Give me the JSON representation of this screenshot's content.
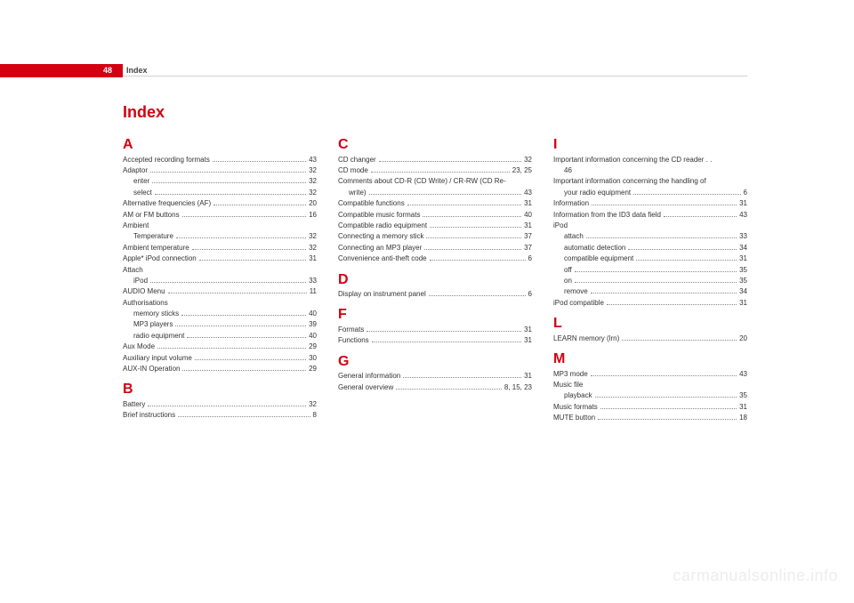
{
  "page_number": "48",
  "header_label": "Index",
  "title": "Index",
  "watermark": "carmanualsonline.info",
  "colors": {
    "accent": "#d30012",
    "text": "#333333",
    "rule": "#d0d0d0",
    "watermark": "#eceded",
    "background": "#ffffff",
    "page_num_text": "#ffffff"
  },
  "typography": {
    "title_fontsize": 18,
    "letter_fontsize": 16,
    "entry_fontsize": 8,
    "header_fontsize": 9
  },
  "columns": [
    {
      "items": [
        {
          "type": "letter",
          "value": "A"
        },
        {
          "type": "entry",
          "label": "Accepted recording formats",
          "page": "43"
        },
        {
          "type": "entry",
          "label": "Adaptor",
          "page": "32"
        },
        {
          "type": "entry",
          "label": "enter",
          "page": "32",
          "sub": true
        },
        {
          "type": "entry",
          "label": "select",
          "page": "32",
          "sub": true
        },
        {
          "type": "entry",
          "label": "Alternative frequencies (AF)",
          "page": "20"
        },
        {
          "type": "entry",
          "label": "AM or FM buttons",
          "page": "16"
        },
        {
          "type": "entry",
          "label": "Ambient",
          "page": "",
          "nolead": true
        },
        {
          "type": "entry",
          "label": "Temperature",
          "page": "32",
          "sub": true
        },
        {
          "type": "entry",
          "label": "Ambient temperature",
          "page": "32"
        },
        {
          "type": "entry",
          "label": "Apple* iPod connection",
          "page": "31"
        },
        {
          "type": "entry",
          "label": "Attach",
          "page": "",
          "nolead": true
        },
        {
          "type": "entry",
          "label": "iPod",
          "page": "33",
          "sub": true
        },
        {
          "type": "entry",
          "label": "AUDIO Menu",
          "page": "11"
        },
        {
          "type": "entry",
          "label": "Authorisations",
          "page": "",
          "nolead": true
        },
        {
          "type": "entry",
          "label": "memory sticks",
          "page": "40",
          "sub": true
        },
        {
          "type": "entry",
          "label": "MP3 players",
          "page": "39",
          "sub": true
        },
        {
          "type": "entry",
          "label": "radio equipment",
          "page": "40",
          "sub": true
        },
        {
          "type": "entry",
          "label": "Aux Mode",
          "page": "29"
        },
        {
          "type": "entry",
          "label": "Auxiliary input volume",
          "page": "30"
        },
        {
          "type": "entry",
          "label": "AUX-IN Operation",
          "page": "29"
        },
        {
          "type": "letter",
          "value": "B"
        },
        {
          "type": "entry",
          "label": "Battery",
          "page": "32"
        },
        {
          "type": "entry",
          "label": "Brief instructions",
          "page": "8"
        }
      ]
    },
    {
      "items": [
        {
          "type": "letter",
          "value": "C"
        },
        {
          "type": "entry",
          "label": "CD changer",
          "page": "32"
        },
        {
          "type": "entry",
          "label": "CD mode",
          "page": "23, 25"
        },
        {
          "type": "entry",
          "label": "Comments about CD-R (CD Write) / CR-RW (CD Re-",
          "page": "",
          "nolead": true
        },
        {
          "type": "entry",
          "label": "write)",
          "page": "43",
          "sub": true
        },
        {
          "type": "entry",
          "label": "Compatible functions",
          "page": "31"
        },
        {
          "type": "entry",
          "label": "Compatible music formats",
          "page": "40"
        },
        {
          "type": "entry",
          "label": "Compatible radio equipment",
          "page": "31"
        },
        {
          "type": "entry",
          "label": "Connecting a memory stick",
          "page": "37"
        },
        {
          "type": "entry",
          "label": "Connecting an MP3 player",
          "page": "37"
        },
        {
          "type": "entry",
          "label": "Convenience anti-theft code",
          "page": "6"
        },
        {
          "type": "letter",
          "value": "D"
        },
        {
          "type": "entry",
          "label": "Display on instrument panel",
          "page": "6"
        },
        {
          "type": "letter",
          "value": "F"
        },
        {
          "type": "entry",
          "label": "Formats",
          "page": "31"
        },
        {
          "type": "entry",
          "label": "Functions",
          "page": "31"
        },
        {
          "type": "letter",
          "value": "G"
        },
        {
          "type": "entry",
          "label": "General information",
          "page": "31"
        },
        {
          "type": "entry",
          "label": "General overview",
          "page": "8, 15, 23"
        }
      ]
    },
    {
      "items": [
        {
          "type": "letter",
          "value": "I"
        },
        {
          "type": "entry",
          "label": "Important information concerning the CD reader . .",
          "page": "",
          "nolead": true
        },
        {
          "type": "entry",
          "label": "46",
          "page": "",
          "sub": true,
          "nolead": true
        },
        {
          "type": "entry",
          "label": "Important information concerning the handling of",
          "page": "",
          "nolead": true
        },
        {
          "type": "entry",
          "label": "your radio equipment",
          "page": "6",
          "sub": true
        },
        {
          "type": "entry",
          "label": "Information",
          "page": "31"
        },
        {
          "type": "entry",
          "label": "Information from the ID3 data field",
          "page": "43"
        },
        {
          "type": "entry",
          "label": "iPod",
          "page": "",
          "nolead": true
        },
        {
          "type": "entry",
          "label": "attach",
          "page": "33",
          "sub": true
        },
        {
          "type": "entry",
          "label": "automatic detection",
          "page": "34",
          "sub": true
        },
        {
          "type": "entry",
          "label": "compatible equipment",
          "page": "31",
          "sub": true
        },
        {
          "type": "entry",
          "label": "off",
          "page": "35",
          "sub": true
        },
        {
          "type": "entry",
          "label": "on",
          "page": "35",
          "sub": true
        },
        {
          "type": "entry",
          "label": "remove",
          "page": "34",
          "sub": true
        },
        {
          "type": "entry",
          "label": "iPod compatible",
          "page": "31"
        },
        {
          "type": "letter",
          "value": "L"
        },
        {
          "type": "entry",
          "label": "LEARN memory (lrn)",
          "page": "20"
        },
        {
          "type": "letter",
          "value": "M"
        },
        {
          "type": "entry",
          "label": "MP3 mode",
          "page": "43"
        },
        {
          "type": "entry",
          "label": "Music file",
          "page": "",
          "nolead": true
        },
        {
          "type": "entry",
          "label": "playback",
          "page": "35",
          "sub": true
        },
        {
          "type": "entry",
          "label": "Music formats",
          "page": "31"
        },
        {
          "type": "entry",
          "label": "MUTE button",
          "page": "18"
        }
      ]
    }
  ]
}
